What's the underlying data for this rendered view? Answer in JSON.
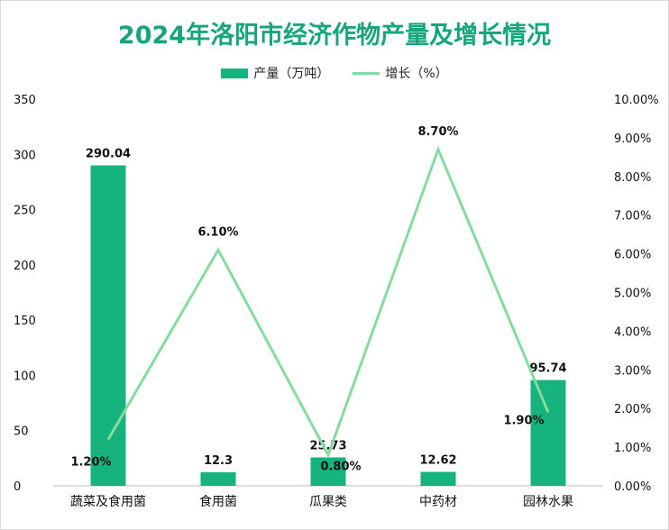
{
  "chart_data": {
    "type": "bar",
    "title": "2024年洛阳市经济作物产量及增长情况",
    "categories": [
      "蔬菜及食用菌",
      "食用菌",
      "瓜果类",
      "中药材",
      "园林水果"
    ],
    "series": [
      {
        "name": "产量（万吨）",
        "type": "bar",
        "axis": "left",
        "values": [
          290.04,
          12.3,
          25.73,
          12.62,
          95.74
        ],
        "labels": [
          "290.04",
          "12.3",
          "25.73",
          "12.62",
          "95.74"
        ],
        "color": "#16b37c"
      },
      {
        "name": "增长（%）",
        "type": "line",
        "axis": "right",
        "values": [
          1.2,
          6.1,
          0.8,
          8.7,
          1.9
        ],
        "labels": [
          "1.20%",
          "6.10%",
          "0.80%",
          "8.70%",
          "1.90%"
        ],
        "color": "#86dba3"
      }
    ],
    "y_left": {
      "range": [
        0,
        350
      ],
      "ticks": [
        0,
        50,
        100,
        150,
        200,
        250,
        300,
        350
      ],
      "tick_labels": [
        "0",
        "50",
        "100",
        "150",
        "200",
        "250",
        "300",
        "350"
      ]
    },
    "y_right": {
      "range": [
        0,
        10
      ],
      "ticks": [
        0,
        1,
        2,
        3,
        4,
        5,
        6,
        7,
        8,
        9,
        10
      ],
      "tick_labels": [
        "0.00%",
        "1.00%",
        "2.00%",
        "3.00%",
        "4.00%",
        "5.00%",
        "6.00%",
        "7.00%",
        "8.00%",
        "9.00%",
        "10.00%"
      ]
    },
    "legend_position": "top",
    "grid": false
  }
}
